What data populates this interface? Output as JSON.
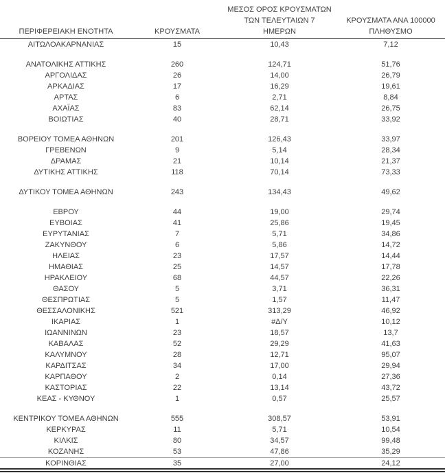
{
  "colors": {
    "text": "#3f3f3f",
    "header_rule": "#262626",
    "pre_last_row_rule": "#a6a6a6",
    "bottom_double_rule": "#2e2e2e",
    "background": "#ffffff"
  },
  "table": {
    "header": [
      {
        "id": "region",
        "lines": [
          "ΠΕΡΙΦΕΡΕΙΑΚΗ ΕΝΟΤΗΤΑ"
        ]
      },
      {
        "id": "cases",
        "lines": [
          "ΚΡΟΥΣΜΑΤΑ"
        ]
      },
      {
        "id": "avg7",
        "lines": [
          "ΜΕΣΟΣ ΟΡΟΣ ΚΡΟΥΣΜΑΤΩΝ",
          "ΤΩΝ ΤΕΛΕΥΤΑΙΩΝ 7",
          "ΗΜΕΡΩΝ"
        ]
      },
      {
        "id": "per100k",
        "lines": [
          "ΚΡΟΥΣΜΑΤΑ ΑΝΑ 100000",
          "ΠΛΗΘΥΣΜΟ"
        ]
      }
    ],
    "groups": [
      {
        "rows": [
          {
            "region": "ΑΙΤΩΛΟΑΚΑΡΝΑΝΙΑΣ",
            "cases": "15",
            "avg7": "10,43",
            "per100k": "7,12"
          }
        ]
      },
      {
        "rows": [
          {
            "region": "ΑΝΑΤΟΛΙΚΗΣ ΑΤΤΙΚΗΣ",
            "cases": "260",
            "avg7": "124,71",
            "per100k": "51,76"
          },
          {
            "region": "ΑΡΓΟΛΙΔΑΣ",
            "cases": "26",
            "avg7": "14,00",
            "per100k": "26,79"
          },
          {
            "region": "ΑΡΚΑΔΙΑΣ",
            "cases": "17",
            "avg7": "16,29",
            "per100k": "19,61"
          },
          {
            "region": "ΑΡΤΑΣ",
            "cases": "6",
            "avg7": "2,71",
            "per100k": "8,84"
          },
          {
            "region": "ΑΧΑΪΑΣ",
            "cases": "83",
            "avg7": "62,14",
            "per100k": "26,75"
          },
          {
            "region": "ΒΟΙΩΤΙΑΣ",
            "cases": "40",
            "avg7": "28,71",
            "per100k": "33,92"
          }
        ]
      },
      {
        "rows": [
          {
            "region": "ΒΟΡΕΙΟΥ ΤΟΜΕΑ ΑΘΗΝΩΝ",
            "cases": "201",
            "avg7": "126,43",
            "per100k": "33,97"
          },
          {
            "region": "ΓΡΕΒΕΝΩΝ",
            "cases": "9",
            "avg7": "5,14",
            "per100k": "28,34"
          },
          {
            "region": "ΔΡΑΜΑΣ",
            "cases": "21",
            "avg7": "10,14",
            "per100k": "21,37"
          },
          {
            "region": "ΔΥΤΙΚΗΣ ΑΤΤΙΚΗΣ",
            "cases": "118",
            "avg7": "70,14",
            "per100k": "73,33"
          }
        ]
      },
      {
        "rows": [
          {
            "region": "ΔΥΤΙΚΟΥ ΤΟΜΕΑ ΑΘΗΝΩΝ",
            "cases": "243",
            "avg7": "134,43",
            "per100k": "49,62"
          }
        ]
      },
      {
        "rows": [
          {
            "region": "ΕΒΡΟΥ",
            "cases": "44",
            "avg7": "19,00",
            "per100k": "29,74"
          },
          {
            "region": "ΕΥΒΟΙΑΣ",
            "cases": "41",
            "avg7": "25,86",
            "per100k": "19,45"
          },
          {
            "region": "ΕΥΡΥΤΑΝΙΑΣ",
            "cases": "7",
            "avg7": "5,71",
            "per100k": "34,86"
          },
          {
            "region": "ΖΑΚΥΝΘΟΥ",
            "cases": "6",
            "avg7": "5,86",
            "per100k": "14,72"
          },
          {
            "region": "ΗΛΕΙΑΣ",
            "cases": "23",
            "avg7": "17,57",
            "per100k": "14,44"
          },
          {
            "region": "ΗΜΑΘΙΑΣ",
            "cases": "25",
            "avg7": "14,57",
            "per100k": "17,78"
          },
          {
            "region": "ΗΡΑΚΛΕΙΟΥ",
            "cases": "68",
            "avg7": "44,57",
            "per100k": "22,26"
          },
          {
            "region": "ΘΑΣΟΥ",
            "cases": "5",
            "avg7": "3,71",
            "per100k": "36,31"
          },
          {
            "region": "ΘΕΣΠΡΩΤΙΑΣ",
            "cases": "5",
            "avg7": "1,57",
            "per100k": "11,47"
          },
          {
            "region": "ΘΕΣΣΑΛΟΝΙΚΗΣ",
            "cases": "521",
            "avg7": "313,29",
            "per100k": "46,92"
          },
          {
            "region": "ΙΚΑΡΙΑΣ",
            "cases": "1",
            "avg7": "#Δ/Υ",
            "per100k": "10,12"
          },
          {
            "region": "ΙΩΑΝΝΙΝΩΝ",
            "cases": "23",
            "avg7": "18,57",
            "per100k": "13,7"
          },
          {
            "region": "ΚΑΒΑΛΑΣ",
            "cases": "52",
            "avg7": "29,29",
            "per100k": "41,63"
          },
          {
            "region": "ΚΑΛΥΜΝΟΥ",
            "cases": "28",
            "avg7": "12,71",
            "per100k": "95,07"
          },
          {
            "region": "ΚΑΡΔΙΤΣΑΣ",
            "cases": "34",
            "avg7": "17,00",
            "per100k": "29,94"
          },
          {
            "region": "ΚΑΡΠΑΘΟΥ",
            "cases": "2",
            "avg7": "0,14",
            "per100k": "27,36"
          },
          {
            "region": "ΚΑΣΤΟΡΙΑΣ",
            "cases": "22",
            "avg7": "13,14",
            "per100k": "43,72"
          },
          {
            "region": "ΚΕΑΣ - ΚΥΘΝΟΥ",
            "cases": "1",
            "avg7": "0,57",
            "per100k": "25,57"
          }
        ]
      },
      {
        "rows": [
          {
            "region": "ΚΕΝΤΡΙΚΟΥ ΤΟΜΕΑ ΑΘΗΝΩΝ",
            "cases": "555",
            "avg7": "308,57",
            "per100k": "53,91"
          },
          {
            "region": "ΚΕΡΚΥΡΑΣ",
            "cases": "11",
            "avg7": "5,71",
            "per100k": "10,54"
          },
          {
            "region": "ΚΙΛΚΙΣ",
            "cases": "80",
            "avg7": "34,57",
            "per100k": "99,48"
          },
          {
            "region": "ΚΟΖΑΝΗΣ",
            "cases": "53",
            "avg7": "47,86",
            "per100k": "35,29"
          },
          {
            "region": "ΚΟΡΙΝΘΙΑΣ",
            "cases": "35",
            "avg7": "27,00",
            "per100k": "24,12"
          }
        ]
      }
    ]
  }
}
